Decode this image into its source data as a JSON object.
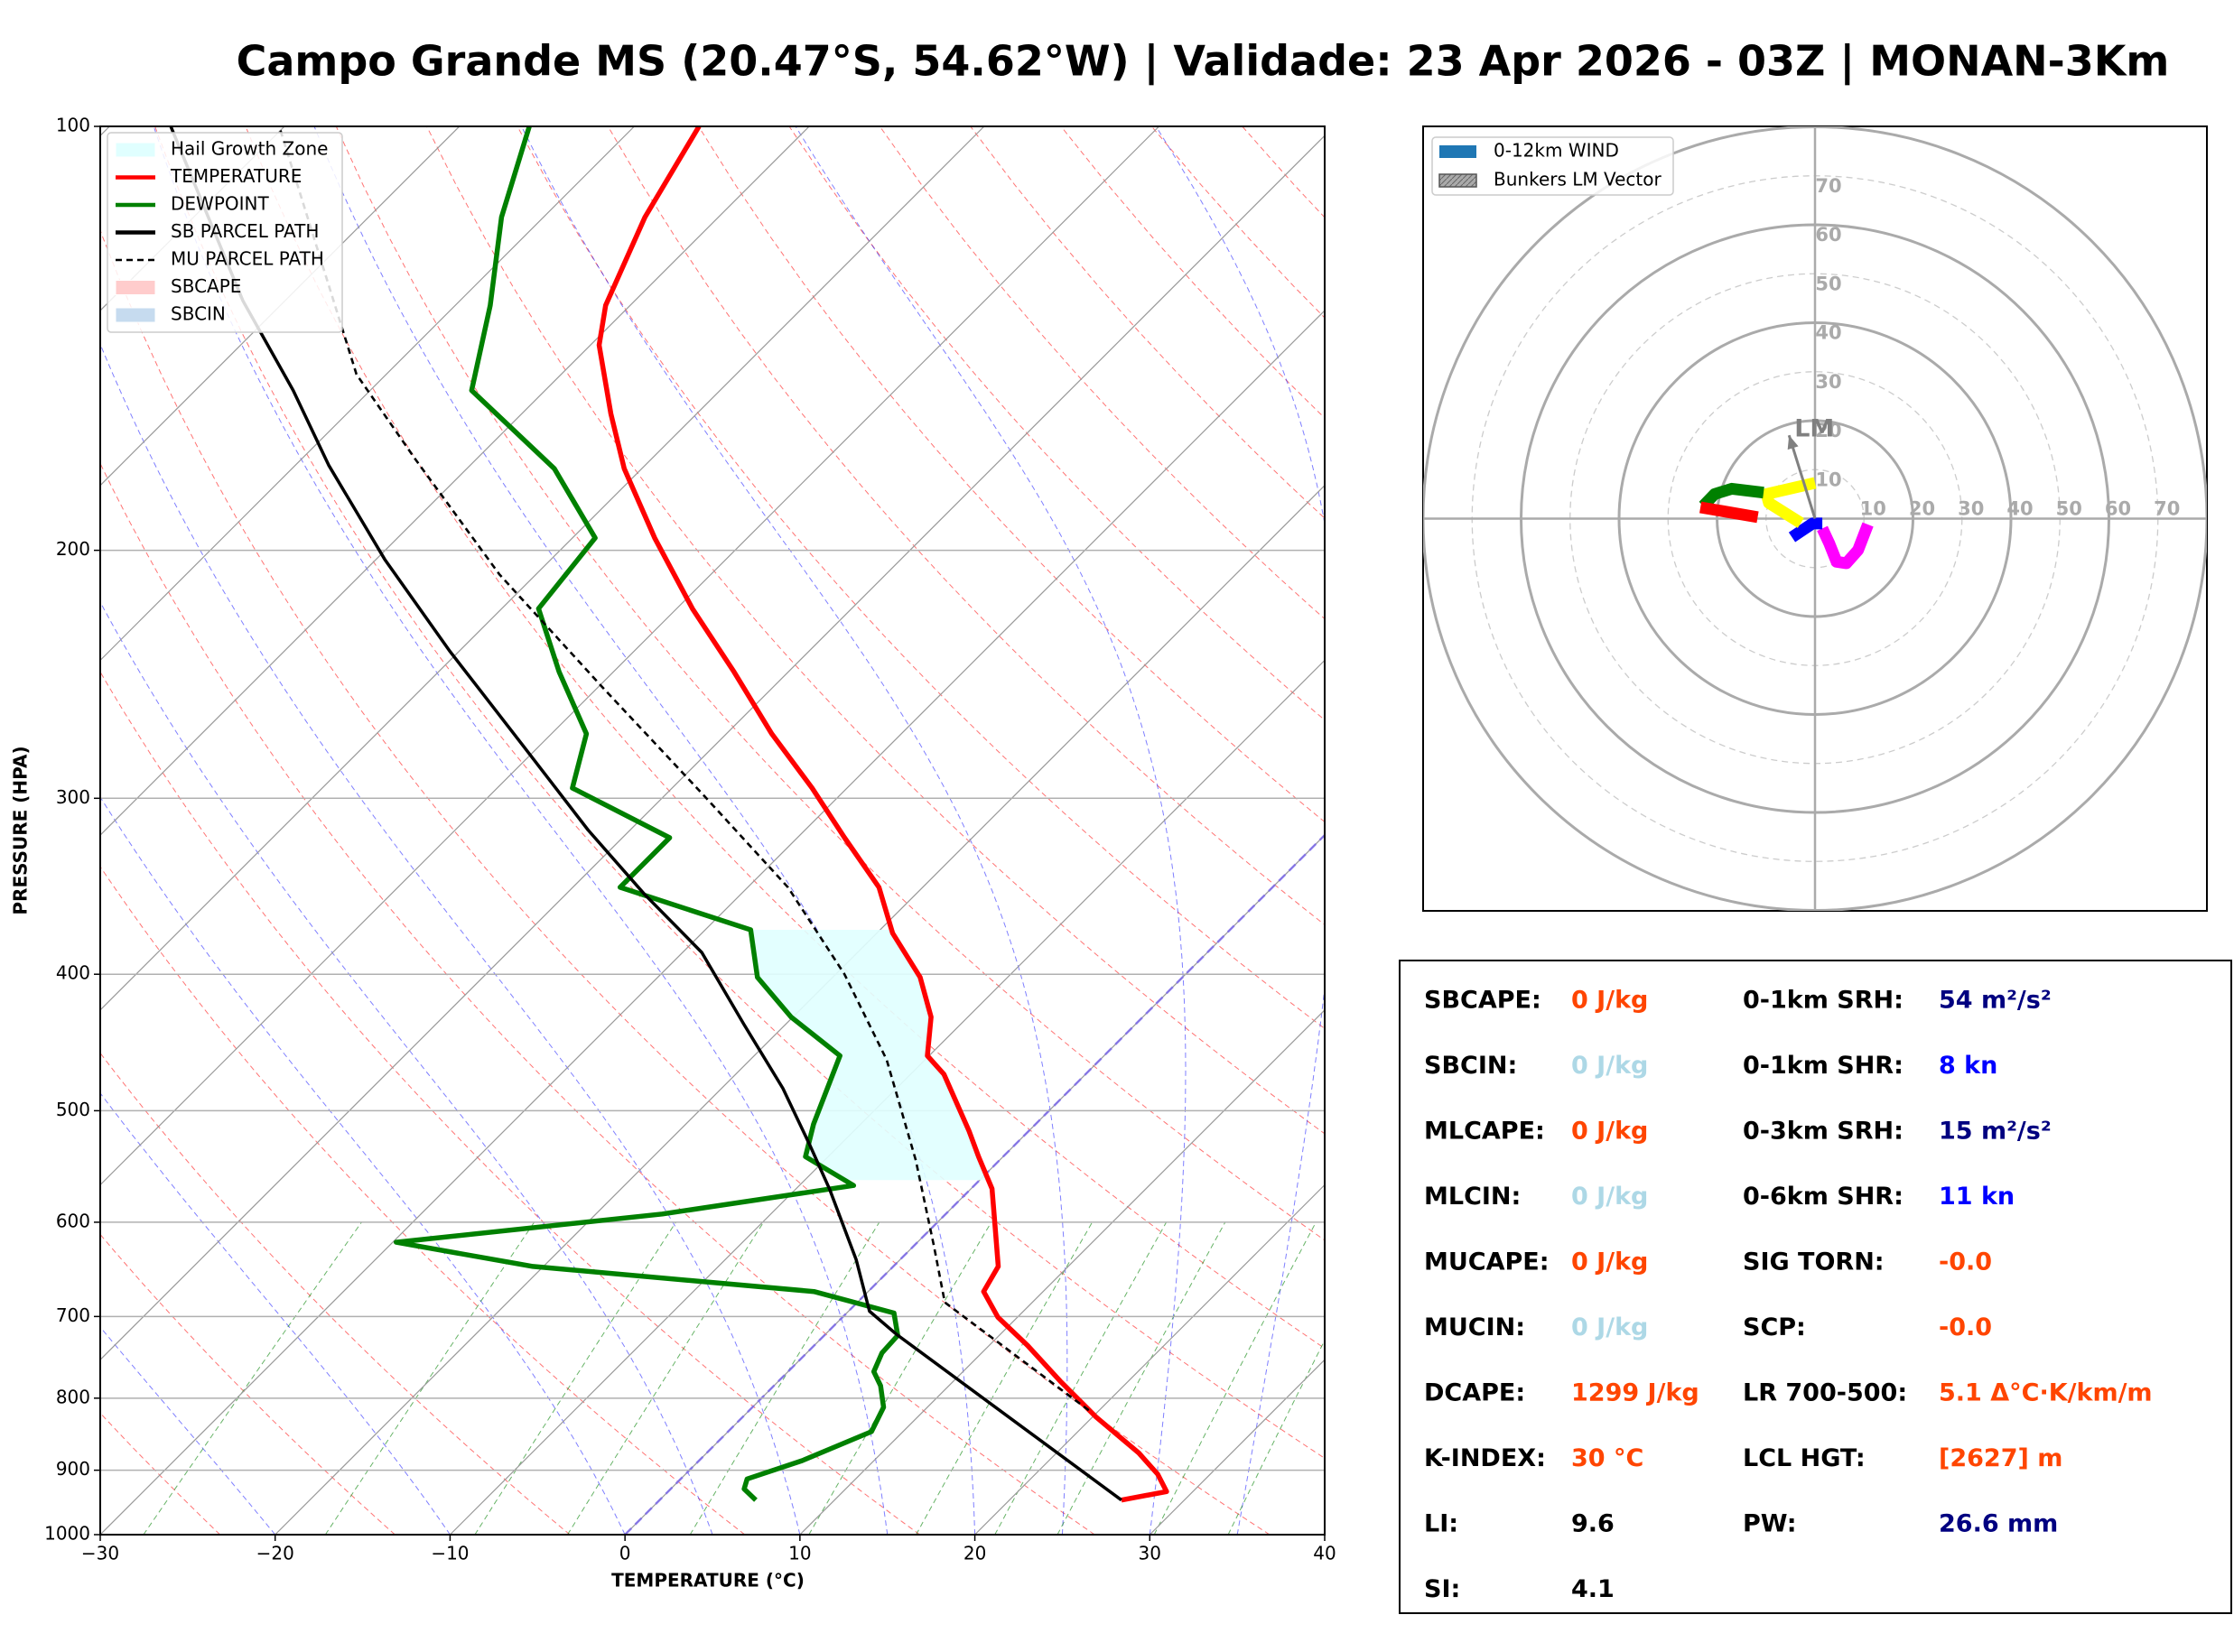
{
  "chart_data": [
    {
      "type": "skewt",
      "title": "Campo Grande MS (20.47°S, 54.62°W) | Validade: 23 Apr 2026 - 03Z | MONAN-3Km",
      "x_label": "TEMPERATURE (°C)",
      "y_label": "PRESSURE (HPA)",
      "xlim": [
        -30,
        40
      ],
      "xticks": [
        {
          "value": -30,
          "label": "−30"
        },
        {
          "value": -20,
          "label": "−20"
        },
        {
          "value": -10,
          "label": "−10"
        },
        0,
        10,
        20,
        30,
        40
      ],
      "ylim": [
        1000,
        100
      ],
      "yticks": [
        100,
        200,
        300,
        400,
        500,
        600,
        700,
        800,
        900,
        1000
      ],
      "y_scale": "log",
      "grid": true,
      "legend": "upper left",
      "areas": [
        {
          "name": "Hail Growth Zone",
          "color": "#e0ffff",
          "pressure_range": [
            560,
            372
          ]
        },
        {
          "name": "SBCAPE",
          "color": "#ffcccc"
        },
        {
          "name": "SBCIN",
          "color": "#c6dbef"
        }
      ],
      "series": [
        {
          "name": "TEMPERATURE",
          "color": "#ff0000",
          "style": "solid",
          "pressure": [
            945,
            932,
            906,
            875,
            825,
            778,
            734,
            701,
            672,
            645,
            602,
            568,
            539,
            517,
            471,
            457,
            429,
            402,
            374,
            347,
            320,
            295,
            270,
            244,
            220,
            196,
            175,
            160,
            143,
            134,
            116,
            100
          ],
          "values": [
            26.4,
            28.5,
            27.0,
            24.7,
            20.2,
            16.1,
            12.2,
            8.9,
            6.6,
            6.0,
            3.4,
            1.2,
            -1.4,
            -3.4,
            -8.1,
            -10.1,
            -12.1,
            -15.0,
            -19.1,
            -22.5,
            -27.3,
            -32.0,
            -37.4,
            -43.1,
            -49.1,
            -55.3,
            -61.0,
            -64.9,
            -69.5,
            -71.4,
            -74.2,
            -76.3
          ]
        },
        {
          "name": "DEWPOINT",
          "color": "#008000",
          "style": "solid",
          "pressure": [
            945,
            928,
            913,
            886,
            845,
            812,
            784,
            766,
            743,
            722,
            696,
            672,
            645,
            620,
            592,
            565,
            539,
            511,
            457,
            429,
            402,
            372,
            347,
            320,
            295,
            270,
            244,
            220,
            196,
            175,
            154,
            134,
            116,
            100
          ],
          "values": [
            5.5,
            4.2,
            3.8,
            5.9,
            8.2,
            7.5,
            6.1,
            4.9,
            4.3,
            4.2,
            2.7,
            -3.1,
            -20.6,
            -29.8,
            -16.2,
            -6.9,
            -11.3,
            -12.7,
            -15.1,
            -20.1,
            -24.3,
            -27.4,
            -37.3,
            -37.3,
            -45.7,
            -48.0,
            -53.1,
            -57.9,
            -58.7,
            -65.0,
            -74.2,
            -78.0,
            -82.4,
            -86.0
          ]
        },
        {
          "name": "SB PARCEL PATH",
          "color": "#000000",
          "style": "solid",
          "pressure": [
            945,
            721,
            694,
            638,
            568,
            529,
            482,
            434,
            386,
            351,
            316,
            275,
            236,
            203,
            174,
            154,
            133,
            100
          ],
          "values": [
            26.4,
            4.1,
            1.2,
            -2.5,
            -8.1,
            -11.7,
            -16.5,
            -22.4,
            -28.9,
            -35.5,
            -42.4,
            -51.0,
            -60.5,
            -69.5,
            -78.1,
            -84.4,
            -92.4,
            -106.5
          ]
        },
        {
          "name": "MU PARCEL PATH",
          "color": "#000000",
          "style": "dashed",
          "pressure": [
            816,
            684,
            623,
            542,
            460,
            400,
            347,
            298,
            250,
            208,
            172,
            150,
            100
          ],
          "values": [
            19.4,
            5.0,
            1.1,
            -4.8,
            -12.2,
            -19.5,
            -27.7,
            -37.9,
            -49.8,
            -62.1,
            -73.6,
            -81.7,
            -100.3
          ]
        }
      ]
    },
    {
      "type": "hodograph",
      "xlim": [
        -80,
        80
      ],
      "ylim": [
        -80,
        80
      ],
      "ticks": [
        10,
        20,
        30,
        40,
        50,
        60,
        70
      ],
      "legend": "upper left",
      "wind": {
        "name": "0-12km WIND",
        "color": "#1f77b4",
        "segments": [
          {
            "color": "#ff00ff",
            "u": [
              10.8,
              8.8,
              6.4,
              4.4,
              2.9,
              1.5
            ],
            "v": [
              -1.2,
              -6.4,
              -9.1,
              -8.8,
              -5.0,
              -2.0
            ]
          },
          {
            "color": "#0000ff",
            "u": [
              1.5,
              -0.5,
              -4.7
            ],
            "v": [
              -1.0,
              -1.0,
              -3.8
            ]
          },
          {
            "color": "#ffff00",
            "u": [
              -2.9,
              -9.4,
              -9.9,
              0.0
            ],
            "v": [
              -0.9,
              3.2,
              5.0,
              7.3
            ]
          },
          {
            "color": "#008000",
            "u": [
              -10.5,
              -17.0,
              -20.5,
              -22.8
            ],
            "v": [
              5.3,
              6.1,
              5.0,
              2.6
            ]
          },
          {
            "color": "#ff0000",
            "u": [
              -23.4,
              -11.7
            ],
            "v": [
              2.3,
              0.3
            ]
          }
        ]
      },
      "bunkers": {
        "name": "Bunkers LM Vector",
        "label": "LM",
        "color": "#808080",
        "u": -5.3,
        "v": 17.0
      }
    }
  ],
  "indices": {
    "left": [
      {
        "label": "SBCAPE:",
        "value": "0 J/kg",
        "color": "#ff4500"
      },
      {
        "label": "SBCIN:",
        "value": "0 J/kg",
        "color": "#add8e6"
      },
      {
        "label": "MLCAPE:",
        "value": "0 J/kg",
        "color": "#ff4500"
      },
      {
        "label": "MLCIN:",
        "value": "0 J/kg",
        "color": "#add8e6"
      },
      {
        "label": "MUCAPE:",
        "value": "0 J/kg",
        "color": "#ff4500"
      },
      {
        "label": "MUCIN:",
        "value": "0 J/kg",
        "color": "#add8e6"
      },
      {
        "label": "DCAPE:",
        "value": "1299 J/kg",
        "color": "#ff4500"
      },
      {
        "label": "K-INDEX:",
        "value": "30 °C",
        "color": "#ff4500"
      },
      {
        "label": "LI:",
        "value": "9.6",
        "color": "#000000"
      },
      {
        "label": "SI:",
        "value": "4.1",
        "color": "#000000"
      }
    ],
    "right": [
      {
        "label": "0-1km SRH:",
        "value": "54 m²/s²",
        "color": "#000080"
      },
      {
        "label": "0-1km SHR:",
        "value": "8 kn",
        "color": "#0000ff"
      },
      {
        "label": "0-3km SRH:",
        "value": "15 m²/s²",
        "color": "#000080"
      },
      {
        "label": "0-6km SHR:",
        "value": "11 kn",
        "color": "#0000ff"
      },
      {
        "label": "SIG TORN:",
        "value": "-0.0",
        "color": "#ff4500"
      },
      {
        "label": "SCP:",
        "value": "-0.0",
        "color": "#ff4500"
      },
      {
        "label": "LR 700-500:",
        "value": "5.1 Δ°C·K/km/m",
        "color": "#ff4500"
      },
      {
        "label": "LCL HGT:",
        "value": "[2627] m",
        "color": "#ff4500"
      },
      {
        "label": "PW:",
        "value": "26.6 mm",
        "color": "#000080"
      }
    ]
  }
}
